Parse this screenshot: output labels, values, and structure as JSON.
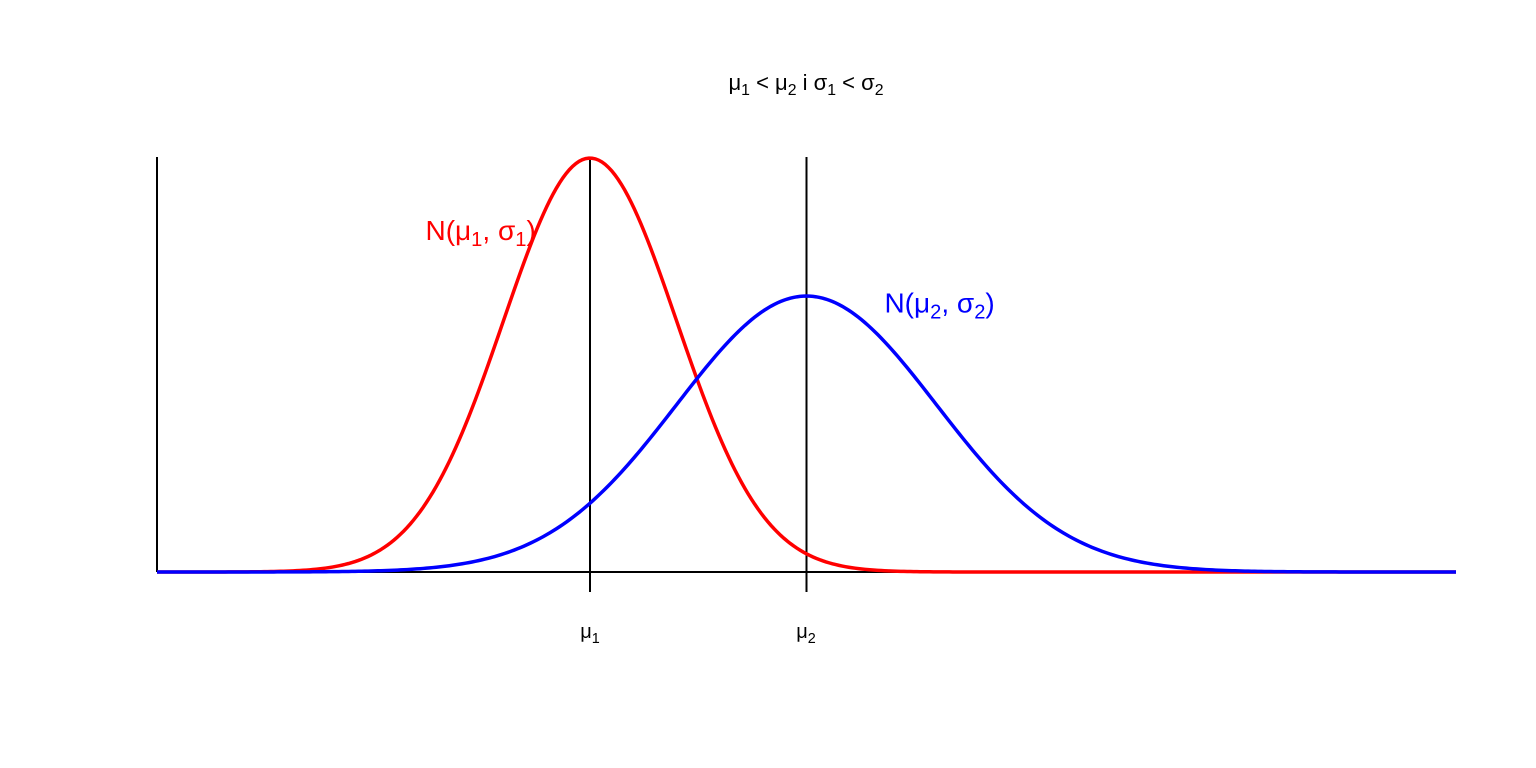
{
  "chart_data": {
    "type": "line",
    "title": {
      "mu": "μ",
      "s1": "1",
      "lt1": " < ",
      "mu2": "μ",
      "s2": "2",
      "conj": " i ",
      "sigma": "σ",
      "s3": "1",
      "lt2": " < ",
      "sigma2": "σ",
      "s4": "2"
    },
    "xlabel": "",
    "ylabel": "",
    "xlim": [
      -5,
      10
    ],
    "ylim": [
      0,
      0.4
    ],
    "grid": false,
    "x_ticks": [
      {
        "x": 0,
        "sym": "μ",
        "sub": "1"
      },
      {
        "x": 2.5,
        "sym": "μ",
        "sub": "2"
      }
    ],
    "vertical_lines": [
      0,
      2.5
    ],
    "series": [
      {
        "mean": 0,
        "sd": 1,
        "color": "#ff0000",
        "label": {
          "N": "N",
          "open": "(",
          "mu": "μ",
          "s1": "1",
          "comma": ", ",
          "sigma": "σ",
          "s2": "1",
          "close": ")"
        },
        "label_anchor": {
          "x": -1.9,
          "y": 0.32
        }
      },
      {
        "mean": 2.5,
        "sd": 1.5,
        "color": "#0000ff",
        "label": {
          "N": "N",
          "open": "(",
          "mu": "μ",
          "s1": "2",
          "comma": ", ",
          "sigma": "σ",
          "s2": "2",
          "close": ")"
        },
        "label_anchor": {
          "x": 3.4,
          "y": 0.25
        }
      }
    ]
  }
}
